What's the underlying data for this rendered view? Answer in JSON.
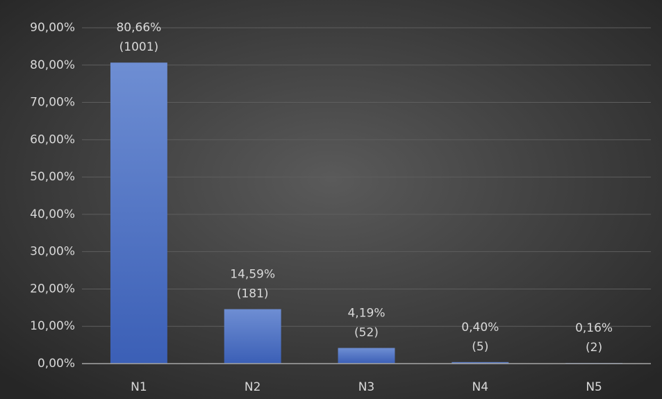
{
  "chart_data": {
    "type": "bar",
    "categories": [
      "N1",
      "N2",
      "N3",
      "N4",
      "N5"
    ],
    "values": [
      80.66,
      14.59,
      4.19,
      0.4,
      0.16
    ],
    "value_labels": [
      "80,66%",
      "14,59%",
      "4,19%",
      "0,40%",
      "0,16%"
    ],
    "count_labels": [
      "(1001)",
      "(181)",
      "(52)",
      "(5)",
      "(2)"
    ],
    "color": "#4a6fc4",
    "ylim": [
      0,
      90
    ],
    "yticks": [
      {
        "value": 0,
        "label": "0,00%"
      },
      {
        "value": 10,
        "label": "10,00%"
      },
      {
        "value": 20,
        "label": "20,00%"
      },
      {
        "value": 30,
        "label": "30,00%"
      },
      {
        "value": 40,
        "label": "40,00%"
      },
      {
        "value": 50,
        "label": "50,00%"
      },
      {
        "value": 60,
        "label": "60,00%"
      },
      {
        "value": 70,
        "label": "70,00%"
      },
      {
        "value": 80,
        "label": "80,00%"
      },
      {
        "value": 90,
        "label": "90,00%"
      }
    ],
    "grid": true
  }
}
